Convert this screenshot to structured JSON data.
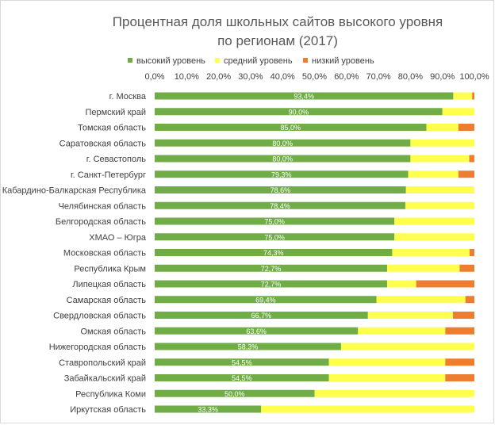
{
  "chart_data": {
    "type": "bar",
    "orientation": "horizontal",
    "stacked": "percent",
    "title": "Процентная доля школьных сайтов высокого уровня по регионам (2017)",
    "title_lines": [
      "Процентная доля школьных сайтов высокого уровня",
      "по регионам (2017)"
    ],
    "xlabel": "",
    "ylabel": "",
    "xlim": [
      0,
      100
    ],
    "x_ticks": [
      "0,0%",
      "10,0%",
      "20,0%",
      "30,0%",
      "40,0%",
      "50,0%",
      "60,0%",
      "70,0%",
      "80,0%",
      "90,0%",
      "100,0%"
    ],
    "x_tick_position": "top",
    "grid": false,
    "legend_position": "top",
    "categories": [
      "г. Москва",
      "Пермский край",
      "Томская область",
      "Саратовская область",
      "г. Севастополь",
      "г. Санкт-Петербург",
      "Кабардино-Балкарская Республика",
      "Челябинская область",
      "Белгородская область",
      "ХМАО – Югра",
      "Московская область",
      "Республика Крым",
      "Липецкая область",
      "Самарская область",
      "Свердловская область",
      "Омская область",
      "Нижегородская область",
      "Ставропольский край",
      "Забайкальский край",
      "Республика Коми",
      "Иркутская область"
    ],
    "series": [
      {
        "name": "высокий уровень",
        "color": "#70ad47",
        "values": [
          93.4,
          90.0,
          85.0,
          80.0,
          80.0,
          79.3,
          78.6,
          78.4,
          75.0,
          75.0,
          74.3,
          72.7,
          72.7,
          69.4,
          66.7,
          63.6,
          58.3,
          54.5,
          54.5,
          50.0,
          33.3
        ],
        "labels": [
          "93,4%",
          "90,0%",
          "85,0%",
          "80,0%",
          "80,0%",
          "79,3%",
          "78,6%",
          "78,4%",
          "75,0%",
          "75,0%",
          "74,3%",
          "72,7%",
          "72,7%",
          "69,4%",
          "66,7%",
          "63,6%",
          "58,3%",
          "54,5%",
          "54,5%",
          "50,0%",
          "33,3%"
        ]
      },
      {
        "name": "средний уровень",
        "color": "#ffff4d",
        "values": [
          5.9,
          10.0,
          10.0,
          20.0,
          18.4,
          15.7,
          21.4,
          21.6,
          25.0,
          25.0,
          24.2,
          22.7,
          9.1,
          27.8,
          26.6,
          27.3,
          41.7,
          36.4,
          36.4,
          50.0,
          66.7
        ]
      },
      {
        "name": "низкий уровень",
        "color": "#ed7d31",
        "values": [
          0.7,
          0.0,
          5.0,
          0.0,
          1.6,
          5.0,
          0.0,
          0.0,
          0.0,
          0.0,
          1.5,
          4.6,
          18.2,
          2.8,
          6.7,
          9.1,
          0.0,
          9.1,
          9.1,
          0.0,
          0.0
        ]
      }
    ]
  }
}
